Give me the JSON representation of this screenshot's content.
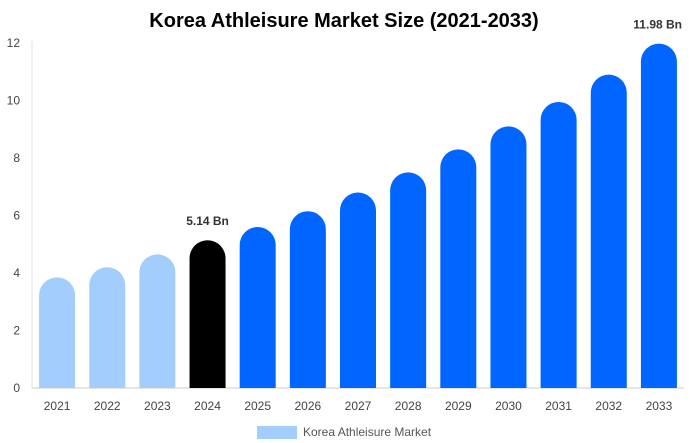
{
  "chart_data": {
    "type": "bar",
    "title": "Korea Athleisure Market Size (2021-2033)",
    "xlabel": "",
    "ylabel": "",
    "ylim": [
      0,
      12
    ],
    "yticks": [
      0,
      2,
      4,
      6,
      8,
      10,
      12
    ],
    "grid": false,
    "legend_position": "bottom-center",
    "categories": [
      "2021",
      "2022",
      "2023",
      "2024",
      "2025",
      "2026",
      "2027",
      "2028",
      "2029",
      "2030",
      "2031",
      "2032",
      "2033"
    ],
    "series": [
      {
        "name": "Korea Athleisure Market",
        "values": [
          3.85,
          4.2,
          4.65,
          5.14,
          5.6,
          6.15,
          6.8,
          7.5,
          8.3,
          9.1,
          9.95,
          10.9,
          11.98
        ]
      }
    ],
    "bar_colors": [
      "#a3cdfc",
      "#a3cdfc",
      "#a3cdfc",
      "#000000",
      "#0066ff",
      "#0066ff",
      "#0066ff",
      "#0066ff",
      "#0066ff",
      "#0066ff",
      "#0066ff",
      "#0066ff",
      "#0066ff"
    ],
    "legend_color": "#a3cdfc",
    "data_labels": [
      {
        "category": "2024",
        "text": "5.14 Bn"
      },
      {
        "category": "2033",
        "text": "11.98 Bn"
      }
    ]
  }
}
